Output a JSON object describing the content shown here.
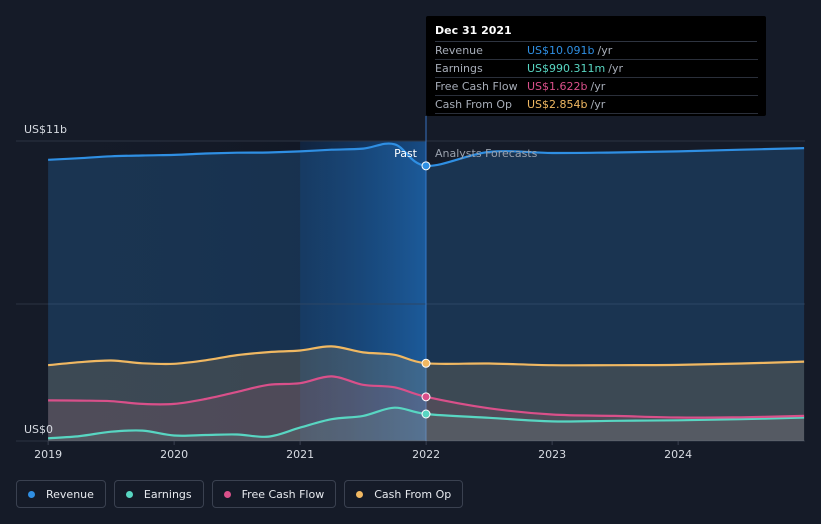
{
  "chart_data": {
    "type": "area",
    "y_unit_prefix": "US$",
    "ytick_top": "US$11b",
    "ytick_bottom": "US$0",
    "ylim": [
      0,
      11
    ],
    "xlim": [
      2018.999,
      2024.999
    ],
    "x_ticks": [
      "2019",
      "2020",
      "2021",
      "2022",
      "2023",
      "2024"
    ],
    "past_label": "Past",
    "forecast_label": "Analysts Forecasts",
    "divider_x": 2021.999,
    "series": [
      {
        "name": "Revenue",
        "color": "#2f8fe3",
        "x": [
          2019.0,
          2019.25,
          2019.5,
          2019.75,
          2020.0,
          2020.25,
          2020.5,
          2020.75,
          2021.0,
          2021.25,
          2021.5,
          2021.75,
          2022.0,
          2022.5,
          2023.0,
          2023.5,
          2024.0,
          2024.5,
          2025.0
        ],
        "y": [
          10.31,
          10.37,
          10.44,
          10.47,
          10.49,
          10.54,
          10.57,
          10.58,
          10.62,
          10.68,
          10.72,
          10.88,
          10.09,
          10.6,
          10.56,
          10.58,
          10.62,
          10.68,
          10.74
        ]
      },
      {
        "name": "Earnings",
        "color": "#58d6c2",
        "x": [
          2019.0,
          2019.25,
          2019.5,
          2019.75,
          2020.0,
          2020.25,
          2020.5,
          2020.75,
          2021.0,
          2021.25,
          2021.5,
          2021.75,
          2022.0,
          2022.5,
          2023.0,
          2023.5,
          2024.0,
          2024.5,
          2025.0
        ],
        "y": [
          0.1,
          0.18,
          0.34,
          0.38,
          0.2,
          0.22,
          0.24,
          0.16,
          0.49,
          0.8,
          0.92,
          1.22,
          0.99,
          0.85,
          0.72,
          0.74,
          0.76,
          0.8,
          0.86
        ]
      },
      {
        "name": "Free Cash Flow",
        "color": "#d9508a",
        "x": [
          2019.0,
          2019.25,
          2019.5,
          2019.75,
          2020.0,
          2020.25,
          2020.5,
          2020.75,
          2021.0,
          2021.25,
          2021.5,
          2021.75,
          2022.0,
          2022.5,
          2023.0,
          2023.5,
          2024.0,
          2024.5,
          2025.0
        ],
        "y": [
          1.49,
          1.48,
          1.46,
          1.36,
          1.36,
          1.54,
          1.8,
          2.06,
          2.12,
          2.37,
          2.06,
          1.97,
          1.62,
          1.2,
          0.97,
          0.92,
          0.86,
          0.87,
          0.92
        ]
      },
      {
        "name": "Cash From Op",
        "color": "#f0b862",
        "x": [
          2019.0,
          2019.25,
          2019.5,
          2019.75,
          2020.0,
          2020.25,
          2020.5,
          2020.75,
          2021.0,
          2021.25,
          2021.5,
          2021.75,
          2022.0,
          2022.5,
          2023.0,
          2023.5,
          2024.0,
          2024.5,
          2025.0
        ],
        "y": [
          2.78,
          2.89,
          2.95,
          2.85,
          2.83,
          2.96,
          3.15,
          3.26,
          3.32,
          3.47,
          3.25,
          3.16,
          2.85,
          2.84,
          2.78,
          2.78,
          2.79,
          2.84,
          2.91
        ]
      }
    ]
  },
  "tooltip": {
    "date": "Dec 31 2021",
    "rows": [
      {
        "label": "Revenue",
        "value": "US$10.091b",
        "unit": "/yr",
        "color": "#2f8fe3"
      },
      {
        "label": "Earnings",
        "value": "US$990.311m",
        "unit": "/yr",
        "color": "#58d6c2"
      },
      {
        "label": "Free Cash Flow",
        "value": "US$1.622b",
        "unit": "/yr",
        "color": "#d9508a"
      },
      {
        "label": "Cash From Op",
        "value": "US$2.854b",
        "unit": "/yr",
        "color": "#f0b862"
      }
    ]
  },
  "legend": [
    {
      "label": "Revenue",
      "color": "#2f8fe3"
    },
    {
      "label": "Earnings",
      "color": "#58d6c2"
    },
    {
      "label": "Free Cash Flow",
      "color": "#d9508a"
    },
    {
      "label": "Cash From Op",
      "color": "#f0b862"
    }
  ]
}
